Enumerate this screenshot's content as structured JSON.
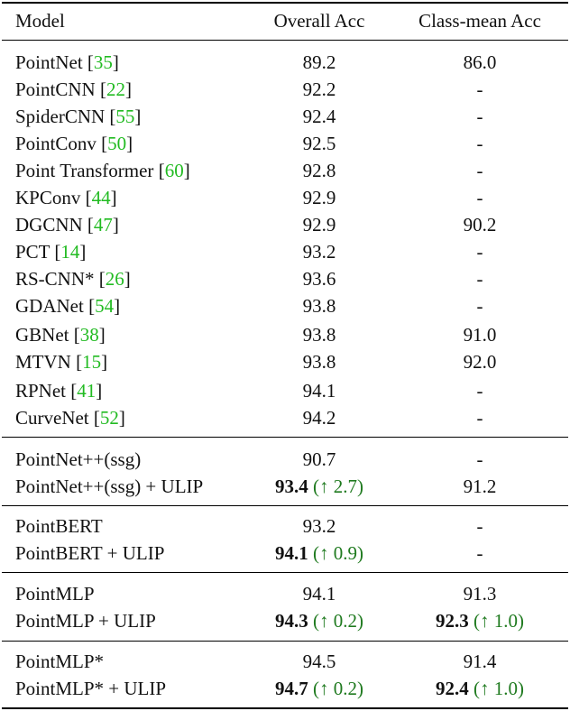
{
  "header": {
    "model": "Model",
    "overall": "Overall Acc",
    "classmean": "Class-mean Acc"
  },
  "baselines": [
    {
      "name": "PointNet",
      "cite": "35",
      "overall": "89.2",
      "classmean": "86.0"
    },
    {
      "name": "PointCNN",
      "cite": "22",
      "overall": "92.2",
      "classmean": "-"
    },
    {
      "name": "SpiderCNN",
      "cite": "55",
      "overall": "92.4",
      "classmean": "-"
    },
    {
      "name": "PointConv",
      "cite": "50",
      "overall": "92.5",
      "classmean": "-"
    },
    {
      "name": "Point Transformer",
      "cite": "60",
      "overall": "92.8",
      "classmean": "-"
    },
    {
      "name": "KPConv",
      "cite": "44",
      "overall": "92.9",
      "classmean": "-"
    },
    {
      "name": "DGCNN",
      "cite": "47",
      "overall": "92.9",
      "classmean": "90.2"
    },
    {
      "name": "PCT",
      "cite": "14",
      "overall": "93.2",
      "classmean": "-"
    },
    {
      "name": "RS-CNN*",
      "cite": "26",
      "overall": "93.6",
      "classmean": "-"
    },
    {
      "name": "GDANet",
      "cite": "54",
      "overall": "93.8",
      "classmean": "-"
    },
    {
      "name": "GBNet",
      "cite": "38",
      "overall": "93.8",
      "classmean": "91.0"
    },
    {
      "name": "MTVN",
      "cite": "15",
      "overall": "93.8",
      "classmean": "92.0"
    },
    {
      "name": "RPNet",
      "cite": "41",
      "overall": "94.1",
      "classmean": "-"
    },
    {
      "name": "CurveNet",
      "cite": "52",
      "overall": "94.2",
      "classmean": "-"
    }
  ],
  "groups": [
    {
      "base": {
        "name": "PointNet++(ssg)",
        "overall": "90.7",
        "classmean": "-"
      },
      "ulip": {
        "name": "PointNet++(ssg) + ULIP",
        "overall": "93.4",
        "overall_gain": "(↑ 2.7)",
        "classmean": "91.2",
        "classmean_gain": ""
      }
    },
    {
      "base": {
        "name": "PointBERT",
        "overall": "93.2",
        "classmean": "-"
      },
      "ulip": {
        "name": "PointBERT + ULIP",
        "overall": "94.1",
        "overall_gain": "(↑ 0.9)",
        "classmean": "-",
        "classmean_gain": ""
      }
    },
    {
      "base": {
        "name": "PointMLP",
        "overall": "94.1",
        "classmean": "91.3"
      },
      "ulip": {
        "name": "PointMLP + ULIP",
        "overall": "94.3",
        "overall_gain": "(↑ 0.2)",
        "classmean": "92.3",
        "classmean_gain": "(↑ 1.0)"
      }
    },
    {
      "base": {
        "name": "PointMLP*",
        "overall": "94.5",
        "classmean": "91.4"
      },
      "ulip": {
        "name": "PointMLP* + ULIP",
        "overall": "94.7",
        "overall_gain": "(↑ 0.2)",
        "classmean": "92.4",
        "classmean_gain": "(↑ 1.0)"
      }
    }
  ]
}
